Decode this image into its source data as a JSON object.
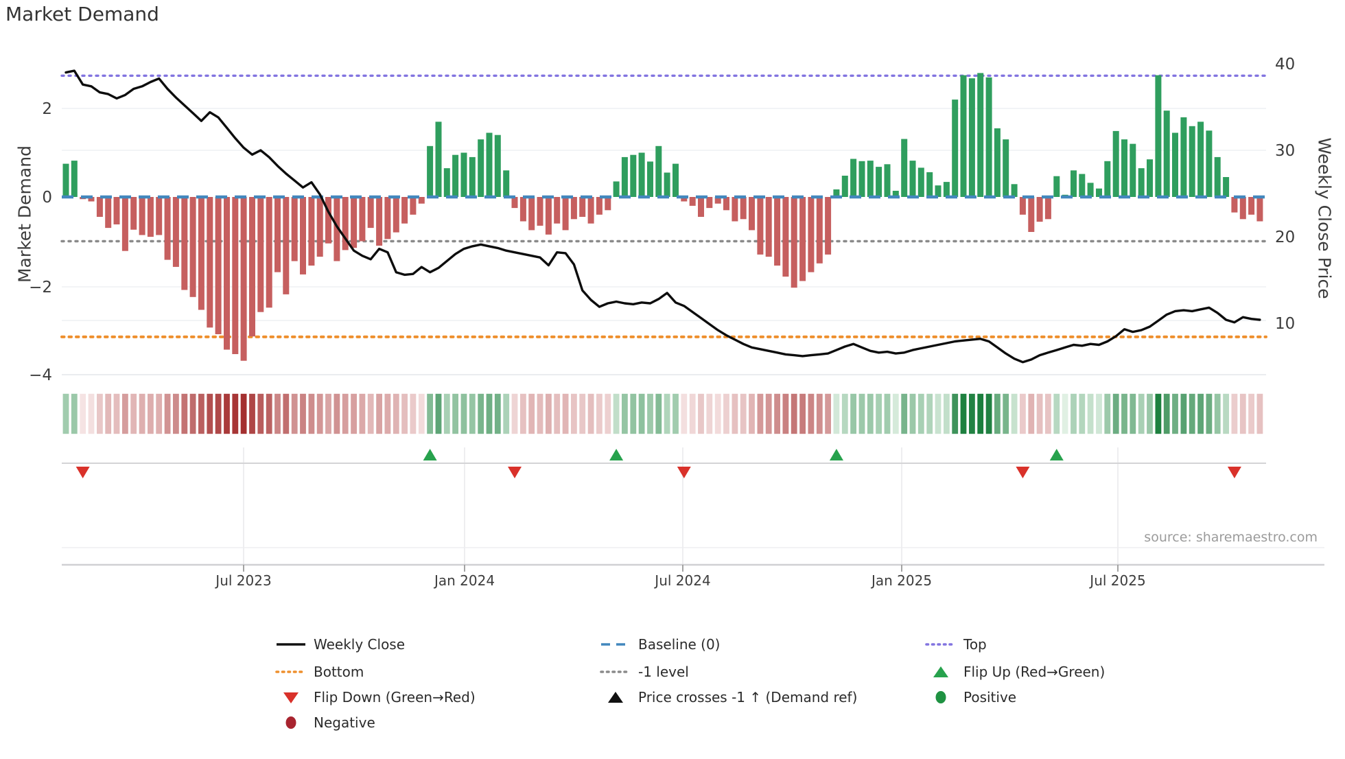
{
  "title": "Market Demand",
  "source": "source: sharemaestro.com",
  "axes": {
    "left_label": "Market Demand",
    "right_label": "Weekly Close Price",
    "left_ticks": [
      "2",
      "0",
      "−2",
      "−4"
    ],
    "right_ticks": [
      "40",
      "30",
      "20",
      "10"
    ],
    "x_ticks": [
      "Jul 2023",
      "Jan 2024",
      "Jul 2024",
      "Jan 2025",
      "Jul 2025"
    ]
  },
  "colors": {
    "bar_positive": "#2f9e5e",
    "bar_negative": "#c65f5f",
    "price_line": "#0d0d0d",
    "baseline": "#4287bd",
    "top_line": "#8274e0",
    "minus_one_line": "#8a8a8a",
    "bottom_line": "#ee8f2d",
    "flip_up": "#27a24d",
    "flip_down": "#d9312a",
    "positive_dot": "#1f9242",
    "negative_dot": "#a8242f",
    "heat_pos_dark": "#1b7e3d",
    "heat_pos_light": "#e8f5ea",
    "heat_neg_dark": "#a43030",
    "heat_neg_light": "#f8e9e9"
  },
  "legend": [
    {
      "label": "Weekly Close",
      "glyph": "line",
      "color": "#111111"
    },
    {
      "label": "Baseline (0)",
      "glyph": "dashed",
      "color": "#4287bd"
    },
    {
      "label": "Top",
      "glyph": "dotted",
      "color": "#8274e0"
    },
    {
      "label": "Bottom",
      "glyph": "dotted",
      "color": "#ee8f2d"
    },
    {
      "label": "-1 level",
      "glyph": "dotted",
      "color": "#8a8a8a"
    },
    {
      "label": "Flip Up (Red→Green)",
      "glyph": "triangle-up",
      "color": "#27a24d"
    },
    {
      "label": "Flip Down (Green→Red)",
      "glyph": "triangle-down",
      "color": "#d9312a"
    },
    {
      "label": "Price crosses -1 ↑ (Demand ref)",
      "glyph": "triangle-up",
      "color": "#111111"
    },
    {
      "label": "Positive",
      "glyph": "circle",
      "color": "#1f9242"
    },
    {
      "label": "Negative",
      "glyph": "circle",
      "color": "#a8242f"
    }
  ],
  "chart_data": {
    "type": "bar",
    "title": "Market Demand",
    "x_axis": "weekly (Feb 2023 – Nov 2025)",
    "x_tick_labels": [
      "Jul 2023",
      "Jan 2024",
      "Jul 2024",
      "Jan 2025",
      "Jul 2025"
    ],
    "x_tick_week_positions": [
      21,
      47.1,
      72.9,
      98.7,
      124.2
    ],
    "ylim_left": [
      -4,
      3.2
    ],
    "ylim_right": [
      4,
      41
    ],
    "grid": "horizontal, faint",
    "legend_position": "below chart, 3 columns",
    "reference_lines": {
      "baseline": 0,
      "top": 2.74,
      "minus_one": -1,
      "bottom": -3.16
    },
    "flip_up_weeks": [
      43,
      65,
      91,
      117
    ],
    "flip_down_weeks": [
      2,
      53,
      73,
      113,
      138
    ],
    "price_cross_events": [],
    "series": [
      {
        "name": "Market Demand",
        "type": "bar",
        "axis": "left",
        "values": [
          0.75,
          0.82,
          -0.05,
          -0.1,
          -0.45,
          -0.7,
          -0.62,
          -1.22,
          -0.74,
          -0.86,
          -0.9,
          -0.86,
          -1.42,
          -1.58,
          -2.1,
          -2.26,
          -2.55,
          -2.95,
          -3.1,
          -3.45,
          -3.55,
          -3.7,
          -3.15,
          -2.6,
          -2.5,
          -1.7,
          -2.2,
          -1.45,
          -1.75,
          -1.55,
          -1.35,
          -1.05,
          -1.45,
          -1.2,
          -1.15,
          -1.0,
          -0.7,
          -1.1,
          -0.95,
          -0.8,
          -0.6,
          -0.4,
          -0.15,
          1.15,
          1.7,
          0.65,
          0.95,
          1.0,
          0.9,
          1.3,
          1.45,
          1.4,
          0.6,
          -0.25,
          -0.55,
          -0.75,
          -0.65,
          -0.85,
          -0.6,
          -0.75,
          -0.5,
          -0.45,
          -0.6,
          -0.4,
          -0.3,
          0.35,
          0.9,
          0.95,
          1.0,
          0.8,
          1.15,
          0.55,
          0.75,
          -0.1,
          -0.2,
          -0.45,
          -0.25,
          -0.15,
          -0.3,
          -0.55,
          -0.5,
          -0.75,
          -1.3,
          -1.35,
          -1.55,
          -1.8,
          -2.05,
          -1.9,
          -1.7,
          -1.5,
          -1.3,
          0.17,
          0.48,
          0.86,
          0.81,
          0.82,
          0.68,
          0.74,
          0.14,
          1.31,
          0.82,
          0.66,
          0.56,
          0.26,
          0.34,
          2.2,
          2.75,
          2.68,
          2.8,
          2.7,
          1.55,
          1.3,
          0.29,
          -0.4,
          -0.79,
          -0.56,
          -0.5,
          0.47,
          0.05,
          0.6,
          0.52,
          0.32,
          0.19,
          0.81,
          1.49,
          1.3,
          1.2,
          0.65,
          0.85,
          2.75,
          1.95,
          1.45,
          1.8,
          1.6,
          1.7,
          1.5,
          0.9,
          0.45,
          -0.35,
          -0.5,
          -0.4,
          -0.55
        ]
      },
      {
        "name": "Weekly Close",
        "type": "line",
        "axis": "right",
        "values": [
          39.0,
          39.2,
          37.6,
          37.4,
          36.7,
          36.5,
          36.0,
          36.4,
          37.1,
          37.4,
          37.9,
          38.3,
          37.1,
          36.1,
          35.2,
          34.3,
          33.4,
          34.4,
          33.8,
          32.6,
          31.4,
          30.3,
          29.5,
          30.0,
          29.2,
          28.2,
          27.3,
          26.5,
          25.7,
          26.3,
          24.9,
          22.9,
          21.2,
          19.8,
          18.4,
          17.8,
          17.4,
          18.6,
          18.2,
          15.9,
          15.6,
          15.7,
          16.5,
          15.9,
          16.4,
          17.2,
          18.0,
          18.6,
          18.9,
          19.1,
          18.9,
          18.7,
          18.4,
          18.2,
          18.0,
          17.8,
          17.6,
          16.7,
          18.2,
          18.1,
          16.8,
          13.8,
          12.7,
          11.9,
          12.3,
          12.5,
          12.3,
          12.2,
          12.4,
          12.3,
          12.8,
          13.5,
          12.4,
          12.0,
          11.3,
          10.6,
          9.9,
          9.2,
          8.6,
          8.1,
          7.6,
          7.2,
          7.0,
          6.8,
          6.6,
          6.4,
          6.3,
          6.2,
          6.3,
          6.4,
          6.5,
          6.9,
          7.3,
          7.6,
          7.2,
          6.8,
          6.6,
          6.7,
          6.5,
          6.6,
          6.9,
          7.1,
          7.3,
          7.5,
          7.7,
          7.9,
          8.0,
          8.1,
          8.2,
          7.9,
          7.2,
          6.5,
          5.9,
          5.5,
          5.8,
          6.3,
          6.6,
          6.9,
          7.2,
          7.5,
          7.4,
          7.6,
          7.5,
          7.9,
          8.5,
          9.3,
          9.0,
          9.2,
          9.6,
          10.3,
          11.0,
          11.4,
          11.5,
          11.4,
          11.6,
          11.8,
          11.2,
          10.4,
          10.1,
          10.7,
          10.5,
          10.4
        ]
      },
      {
        "name": "Demand heatmap strip",
        "type": "heatmap",
        "note": "one cell per week, color = sign/magnitude of Market Demand bar values"
      }
    ]
  }
}
